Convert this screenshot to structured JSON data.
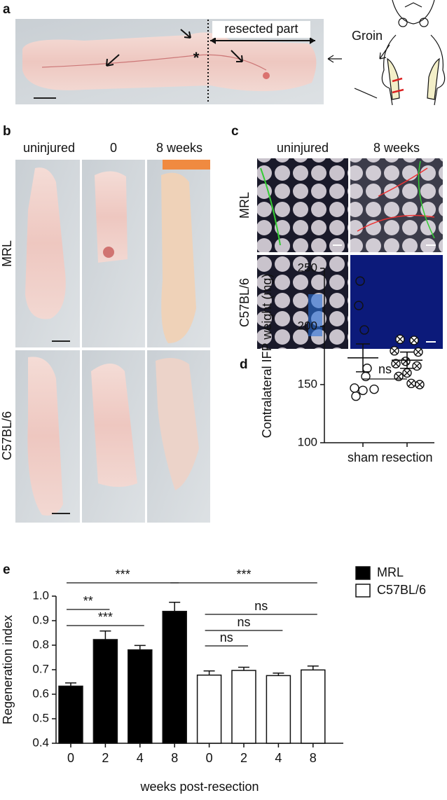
{
  "panel_labels": [
    "a",
    "b",
    "c",
    "d",
    "e"
  ],
  "panel_a": {
    "resected_label": "resected part",
    "groin_label": "Groin",
    "asterisk": "*"
  },
  "panel_b": {
    "columns": [
      "uninjured",
      "0",
      "8 weeks"
    ],
    "rows": [
      "MRL",
      "C57BL/6"
    ]
  },
  "panel_c": {
    "columns": [
      "uninjured",
      "8 weeks"
    ],
    "rows": [
      "MRL",
      "C57BL/6"
    ]
  },
  "chart_data": [
    {
      "type": "dot",
      "ylabel": "Contralateral IFP weight (mg)",
      "ylim": [
        100,
        250
      ],
      "yticks": [
        100,
        150,
        200,
        250
      ],
      "groups": [
        {
          "name": "sham",
          "marker": "open-circle",
          "values": [
            239,
            218,
            197,
            164,
            157,
            147,
            146,
            145,
            140
          ],
          "mean": 173,
          "sem": 12
        },
        {
          "name": "resection",
          "marker": "crossed-circle",
          "values": [
            189,
            188,
            179,
            178,
            170,
            168,
            166,
            160,
            157,
            151,
            150
          ],
          "mean": 171,
          "sem": 7
        }
      ],
      "annotation": "ns"
    },
    {
      "type": "bar",
      "ylabel": "Regeneration index",
      "xlabel": "weeks post-resection",
      "ylim": [
        0.4,
        1.0
      ],
      "yticks": [
        0.4,
        0.5,
        0.6,
        0.7,
        0.8,
        0.9,
        {
          "value": 1,
          "label": "1.0"
        }
      ],
      "categories": [
        "0",
        "2",
        "4",
        "8"
      ],
      "series": [
        {
          "name": "MRL",
          "color": "#000000",
          "values": [
            0.633,
            0.823,
            0.781,
            0.938
          ],
          "errors": [
            0.013,
            0.035,
            0.018,
            0.037
          ]
        },
        {
          "name": "C57BL/6",
          "color": "#ffffff",
          "values": [
            0.678,
            0.697,
            0.676,
            0.699
          ],
          "errors": [
            0.017,
            0.013,
            0.01,
            0.016
          ]
        }
      ],
      "annotations": [
        "**",
        "***",
        "***",
        "***",
        "ns",
        "ns",
        "ns"
      ]
    }
  ]
}
